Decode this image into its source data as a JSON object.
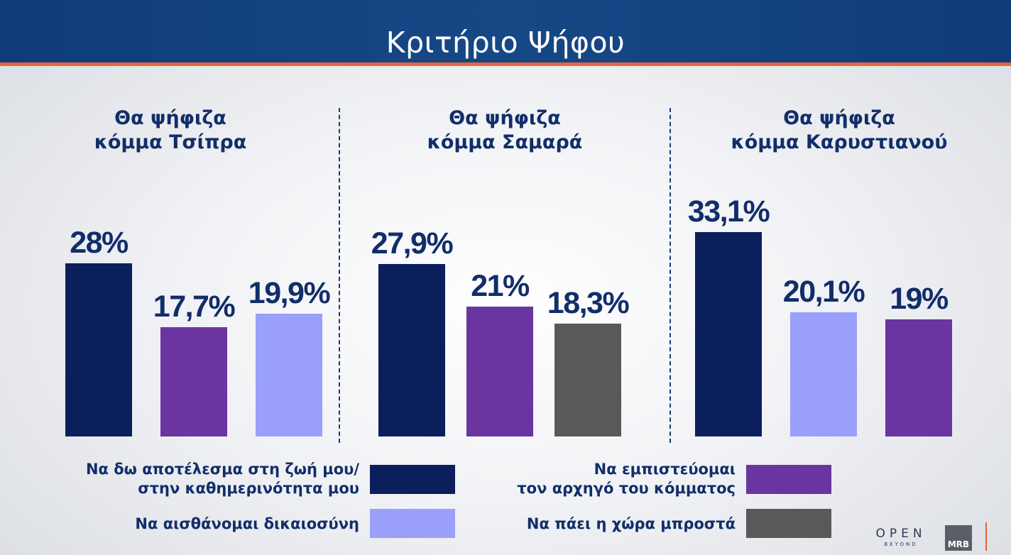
{
  "title": "Κριτήριο Ψήφου",
  "chart_data": {
    "type": "bar",
    "ylim": [
      0,
      40
    ],
    "legend": [
      {
        "key": "result",
        "label_line1": "Να δω αποτέλεσμα στη ζωή μου/",
        "label_line2": "στην καθημερινότητα μου",
        "color": "#0b1f5c"
      },
      {
        "key": "leader",
        "label_line1": "Να εμπιστεύομαι",
        "label_line2": "τον αρχηγό του κόμματος",
        "color": "#6a35a0"
      },
      {
        "key": "justice",
        "label_line1": "Να αισθάνομαι δικαιοσύνη",
        "label_line2": "",
        "color": "#9a9ffb"
      },
      {
        "key": "country",
        "label_line1": "Να πάει η χώρα μπροστά",
        "label_line2": "",
        "color": "#595959"
      }
    ],
    "panels": [
      {
        "title_line1": "Θα ψήφιζα",
        "title_line2": "κόμμα Τσίπρα",
        "bars": [
          {
            "series": "result",
            "value": 28.0,
            "label": "28%"
          },
          {
            "series": "leader",
            "value": 17.7,
            "label": "17,7%"
          },
          {
            "series": "justice",
            "value": 19.9,
            "label": "19,9%"
          }
        ]
      },
      {
        "title_line1": "Θα ψήφιζα",
        "title_line2": "κόμμα Σαμαρά",
        "bars": [
          {
            "series": "result",
            "value": 27.9,
            "label": "27,9%"
          },
          {
            "series": "leader",
            "value": 21.0,
            "label": "21%"
          },
          {
            "series": "country",
            "value": 18.3,
            "label": "18,3%"
          }
        ]
      },
      {
        "title_line1": "Θα ψήφιζα",
        "title_line2": "κόμμα Καρυστιανού",
        "bars": [
          {
            "series": "result",
            "value": 33.1,
            "label": "33,1%"
          },
          {
            "series": "justice",
            "value": 20.1,
            "label": "20,1%"
          },
          {
            "series": "leader",
            "value": 19.0,
            "label": "19%"
          }
        ]
      }
    ]
  },
  "logos": {
    "open_top": "OPEN",
    "open_bottom": "BEYOND",
    "mrb": "MRB"
  }
}
